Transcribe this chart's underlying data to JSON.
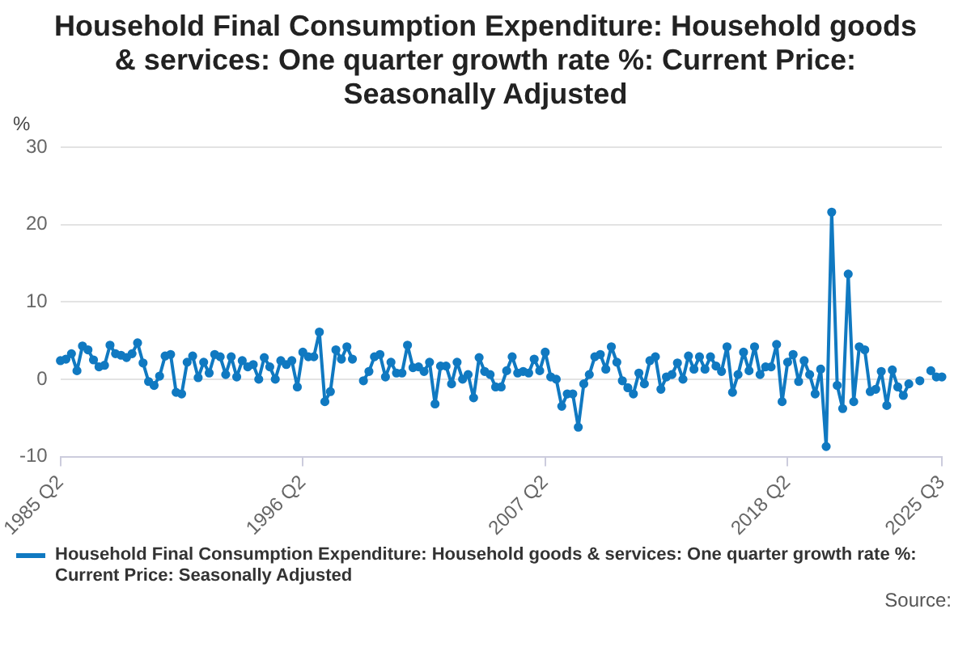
{
  "chart_data": {
    "type": "line",
    "title": "Household Final Consumption Expenditure: Household goods & services: One quarter growth rate %: Current Price: Seasonally Adjusted",
    "ylabel": "%",
    "categories": [
      "1985 Q2",
      null,
      null,
      null,
      null,
      null,
      null,
      null,
      null,
      null,
      null,
      null,
      null,
      null,
      null,
      null,
      null,
      null,
      null,
      null,
      null,
      null,
      null,
      null,
      null,
      null,
      null,
      null,
      null,
      null,
      null,
      null,
      null,
      null,
      null,
      null,
      null,
      null,
      null,
      null,
      null,
      null,
      null,
      null,
      "1996 Q2",
      null,
      null,
      null,
      null,
      null,
      null,
      null,
      null,
      null,
      null,
      null,
      null,
      null,
      null,
      null,
      null,
      null,
      null,
      null,
      null,
      null,
      null,
      null,
      null,
      null,
      null,
      null,
      null,
      null,
      null,
      null,
      null,
      null,
      null,
      null,
      null,
      null,
      null,
      null,
      null,
      null,
      null,
      null,
      "2007 Q2",
      null,
      null,
      null,
      null,
      null,
      null,
      null,
      null,
      null,
      null,
      null,
      null,
      null,
      null,
      null,
      null,
      null,
      null,
      null,
      null,
      null,
      null,
      null,
      null,
      null,
      null,
      null,
      null,
      null,
      null,
      null,
      null,
      null,
      null,
      null,
      null,
      null,
      null,
      null,
      null,
      null,
      null,
      null,
      "2018 Q2",
      null,
      null,
      null,
      null,
      null,
      null,
      null,
      null,
      null,
      null,
      null,
      null,
      null,
      null,
      null,
      null,
      null,
      null,
      null,
      null,
      null,
      null,
      null,
      null,
      null,
      null,
      null,
      "2025 Q3"
    ],
    "series": [
      {
        "name": "Household Final Consumption Expenditure: Household goods & services: One quarter growth rate %: Current Price: Seasonally Adjusted",
        "color": "#1079c1",
        "values": [
          2.4,
          2.6,
          3.3,
          1.1,
          4.3,
          3.8,
          2.5,
          1.6,
          1.8,
          4.4,
          3.3,
          3.1,
          2.8,
          3.3,
          4.7,
          2.1,
          -0.3,
          -0.8,
          0.4,
          3.0,
          3.2,
          -1.7,
          -1.9,
          2.2,
          3.0,
          0.2,
          2.2,
          0.8,
          3.2,
          2.9,
          0.6,
          2.9,
          0.3,
          2.4,
          1.6,
          1.9,
          0,
          2.8,
          1.6,
          0,
          2.4,
          1.9,
          2.4,
          -1.0,
          3.5,
          2.9,
          2.9,
          6.1,
          -2.9,
          -1.6,
          3.8,
          2.6,
          4.2,
          2.6,
          null,
          -0.2,
          1.0,
          2.9,
          3.2,
          0.3,
          2.2,
          0.8,
          0.8,
          4.4,
          1.5,
          1.6,
          1.0,
          2.2,
          -3.2,
          1.7,
          1.7,
          -0.6,
          2.2,
          0,
          0.6,
          -2.4,
          2.8,
          1.0,
          0.6,
          -1.0,
          -1.0,
          1.1,
          2.9,
          0.8,
          1.0,
          0.8,
          2.6,
          1.1,
          3.5,
          0.3,
          0,
          -3.5,
          -1.9,
          -1.9,
          -6.2,
          -0.6,
          0.6,
          2.9,
          3.2,
          1.3,
          4.2,
          2.2,
          -0.2,
          -1.1,
          -1.9,
          0.8,
          -0.6,
          2.4,
          2.9,
          -1.3,
          0.3,
          0.6,
          2.1,
          0,
          3.0,
          1.3,
          2.9,
          1.3,
          2.9,
          1.7,
          1.0,
          4.2,
          -1.7,
          0.6,
          3.5,
          1.1,
          4.2,
          0.6,
          1.6,
          1.6,
          4.5,
          -2.9,
          2.2,
          3.2,
          -0.3,
          2.4,
          0.6,
          -1.9,
          1.3,
          -8.7,
          21.6,
          -0.8,
          -3.8,
          13.6,
          -2.9,
          4.2,
          3.8,
          -1.6,
          -1.3,
          1.0,
          -3.4,
          1.2,
          -1.0,
          -2.1,
          -0.6,
          null,
          -0.2,
          null,
          1.1,
          0.3,
          0.3
        ]
      }
    ],
    "ylim": [
      -10,
      30
    ],
    "yticks": [
      -10,
      0,
      10,
      20,
      30
    ],
    "grid": "y",
    "legend": "bottom",
    "marker": "circle",
    "line_style": "solid",
    "annotations": [
      "Source:"
    ]
  }
}
